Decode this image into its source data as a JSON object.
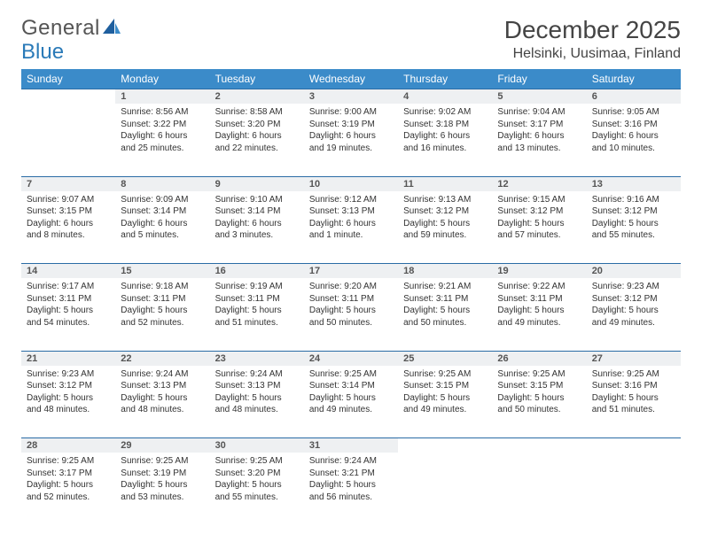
{
  "brand": {
    "part1": "General",
    "part2": "Blue"
  },
  "title": "December 2025",
  "location": "Helsinki, Uusimaa, Finland",
  "colors": {
    "header_bg": "#3b8bc9",
    "header_text": "#ffffff",
    "daynum_bg": "#eef0f2",
    "row_border": "#2a6ca5",
    "body_text": "#333333",
    "logo_gray": "#555555",
    "logo_blue": "#2a7ab8"
  },
  "weekdays": [
    "Sunday",
    "Monday",
    "Tuesday",
    "Wednesday",
    "Thursday",
    "Friday",
    "Saturday"
  ],
  "weeks": [
    [
      {
        "n": "",
        "sunrise": "",
        "sunset": "",
        "daylight": ""
      },
      {
        "n": "1",
        "sunrise": "Sunrise: 8:56 AM",
        "sunset": "Sunset: 3:22 PM",
        "daylight": "Daylight: 6 hours and 25 minutes."
      },
      {
        "n": "2",
        "sunrise": "Sunrise: 8:58 AM",
        "sunset": "Sunset: 3:20 PM",
        "daylight": "Daylight: 6 hours and 22 minutes."
      },
      {
        "n": "3",
        "sunrise": "Sunrise: 9:00 AM",
        "sunset": "Sunset: 3:19 PM",
        "daylight": "Daylight: 6 hours and 19 minutes."
      },
      {
        "n": "4",
        "sunrise": "Sunrise: 9:02 AM",
        "sunset": "Sunset: 3:18 PM",
        "daylight": "Daylight: 6 hours and 16 minutes."
      },
      {
        "n": "5",
        "sunrise": "Sunrise: 9:04 AM",
        "sunset": "Sunset: 3:17 PM",
        "daylight": "Daylight: 6 hours and 13 minutes."
      },
      {
        "n": "6",
        "sunrise": "Sunrise: 9:05 AM",
        "sunset": "Sunset: 3:16 PM",
        "daylight": "Daylight: 6 hours and 10 minutes."
      }
    ],
    [
      {
        "n": "7",
        "sunrise": "Sunrise: 9:07 AM",
        "sunset": "Sunset: 3:15 PM",
        "daylight": "Daylight: 6 hours and 8 minutes."
      },
      {
        "n": "8",
        "sunrise": "Sunrise: 9:09 AM",
        "sunset": "Sunset: 3:14 PM",
        "daylight": "Daylight: 6 hours and 5 minutes."
      },
      {
        "n": "9",
        "sunrise": "Sunrise: 9:10 AM",
        "sunset": "Sunset: 3:14 PM",
        "daylight": "Daylight: 6 hours and 3 minutes."
      },
      {
        "n": "10",
        "sunrise": "Sunrise: 9:12 AM",
        "sunset": "Sunset: 3:13 PM",
        "daylight": "Daylight: 6 hours and 1 minute."
      },
      {
        "n": "11",
        "sunrise": "Sunrise: 9:13 AM",
        "sunset": "Sunset: 3:12 PM",
        "daylight": "Daylight: 5 hours and 59 minutes."
      },
      {
        "n": "12",
        "sunrise": "Sunrise: 9:15 AM",
        "sunset": "Sunset: 3:12 PM",
        "daylight": "Daylight: 5 hours and 57 minutes."
      },
      {
        "n": "13",
        "sunrise": "Sunrise: 9:16 AM",
        "sunset": "Sunset: 3:12 PM",
        "daylight": "Daylight: 5 hours and 55 minutes."
      }
    ],
    [
      {
        "n": "14",
        "sunrise": "Sunrise: 9:17 AM",
        "sunset": "Sunset: 3:11 PM",
        "daylight": "Daylight: 5 hours and 54 minutes."
      },
      {
        "n": "15",
        "sunrise": "Sunrise: 9:18 AM",
        "sunset": "Sunset: 3:11 PM",
        "daylight": "Daylight: 5 hours and 52 minutes."
      },
      {
        "n": "16",
        "sunrise": "Sunrise: 9:19 AM",
        "sunset": "Sunset: 3:11 PM",
        "daylight": "Daylight: 5 hours and 51 minutes."
      },
      {
        "n": "17",
        "sunrise": "Sunrise: 9:20 AM",
        "sunset": "Sunset: 3:11 PM",
        "daylight": "Daylight: 5 hours and 50 minutes."
      },
      {
        "n": "18",
        "sunrise": "Sunrise: 9:21 AM",
        "sunset": "Sunset: 3:11 PM",
        "daylight": "Daylight: 5 hours and 50 minutes."
      },
      {
        "n": "19",
        "sunrise": "Sunrise: 9:22 AM",
        "sunset": "Sunset: 3:11 PM",
        "daylight": "Daylight: 5 hours and 49 minutes."
      },
      {
        "n": "20",
        "sunrise": "Sunrise: 9:23 AM",
        "sunset": "Sunset: 3:12 PM",
        "daylight": "Daylight: 5 hours and 49 minutes."
      }
    ],
    [
      {
        "n": "21",
        "sunrise": "Sunrise: 9:23 AM",
        "sunset": "Sunset: 3:12 PM",
        "daylight": "Daylight: 5 hours and 48 minutes."
      },
      {
        "n": "22",
        "sunrise": "Sunrise: 9:24 AM",
        "sunset": "Sunset: 3:13 PM",
        "daylight": "Daylight: 5 hours and 48 minutes."
      },
      {
        "n": "23",
        "sunrise": "Sunrise: 9:24 AM",
        "sunset": "Sunset: 3:13 PM",
        "daylight": "Daylight: 5 hours and 48 minutes."
      },
      {
        "n": "24",
        "sunrise": "Sunrise: 9:25 AM",
        "sunset": "Sunset: 3:14 PM",
        "daylight": "Daylight: 5 hours and 49 minutes."
      },
      {
        "n": "25",
        "sunrise": "Sunrise: 9:25 AM",
        "sunset": "Sunset: 3:15 PM",
        "daylight": "Daylight: 5 hours and 49 minutes."
      },
      {
        "n": "26",
        "sunrise": "Sunrise: 9:25 AM",
        "sunset": "Sunset: 3:15 PM",
        "daylight": "Daylight: 5 hours and 50 minutes."
      },
      {
        "n": "27",
        "sunrise": "Sunrise: 9:25 AM",
        "sunset": "Sunset: 3:16 PM",
        "daylight": "Daylight: 5 hours and 51 minutes."
      }
    ],
    [
      {
        "n": "28",
        "sunrise": "Sunrise: 9:25 AM",
        "sunset": "Sunset: 3:17 PM",
        "daylight": "Daylight: 5 hours and 52 minutes."
      },
      {
        "n": "29",
        "sunrise": "Sunrise: 9:25 AM",
        "sunset": "Sunset: 3:19 PM",
        "daylight": "Daylight: 5 hours and 53 minutes."
      },
      {
        "n": "30",
        "sunrise": "Sunrise: 9:25 AM",
        "sunset": "Sunset: 3:20 PM",
        "daylight": "Daylight: 5 hours and 55 minutes."
      },
      {
        "n": "31",
        "sunrise": "Sunrise: 9:24 AM",
        "sunset": "Sunset: 3:21 PM",
        "daylight": "Daylight: 5 hours and 56 minutes."
      },
      {
        "n": "",
        "sunrise": "",
        "sunset": "",
        "daylight": ""
      },
      {
        "n": "",
        "sunrise": "",
        "sunset": "",
        "daylight": ""
      },
      {
        "n": "",
        "sunrise": "",
        "sunset": "",
        "daylight": ""
      }
    ]
  ]
}
